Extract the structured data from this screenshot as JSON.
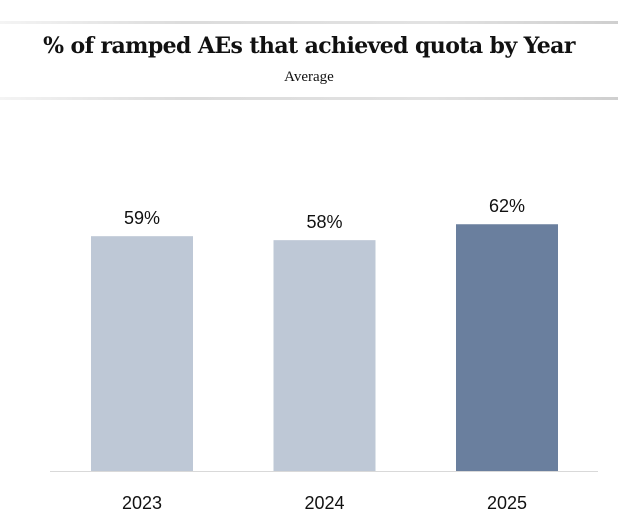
{
  "chart_data": {
    "type": "bar",
    "title": "% of ramped AEs that achieved quota by Year",
    "subtitle": "Average",
    "categories": [
      "2023",
      "2024",
      "2025"
    ],
    "values": [
      59,
      58,
      62
    ],
    "data_labels": [
      "59%",
      "58%",
      "62%"
    ],
    "colors": [
      "#bec8d6",
      "#bec8d6",
      "#6a7f9e"
    ],
    "ylim": [
      0,
      100
    ],
    "grid": false,
    "axis_color": "#d9d9d9"
  }
}
